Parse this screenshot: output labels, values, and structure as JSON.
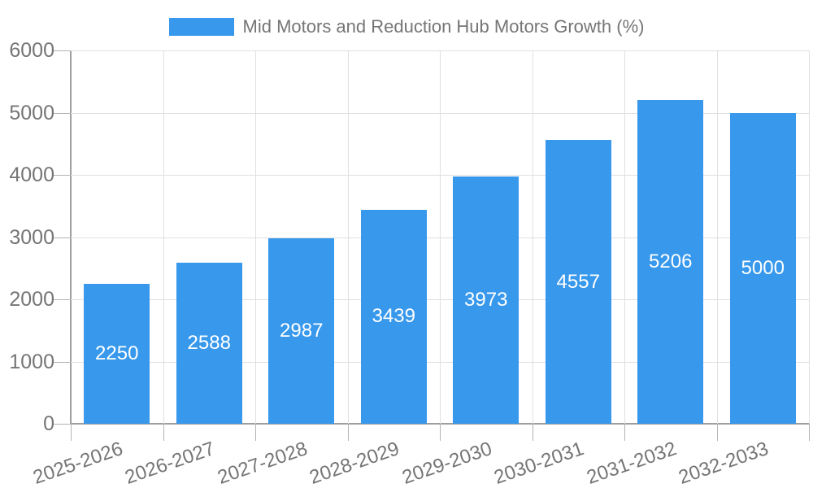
{
  "chart_data": {
    "type": "bar",
    "title": "Mid Motors and Reduction Hub Motors Growth (%)",
    "categories": [
      "2025-2026",
      "2026-2027",
      "2027-2028",
      "2028-2029",
      "2029-2030",
      "2030-2031",
      "2031-2032",
      "2032-2033"
    ],
    "values": [
      2250,
      2588,
      2987,
      3439,
      3973,
      4557,
      5206,
      5000
    ],
    "xlabel": "",
    "ylabel": "",
    "ylim": [
      0,
      6000
    ],
    "yticks": [
      0,
      1000,
      2000,
      3000,
      4000,
      5000,
      6000
    ],
    "grid": true,
    "legend_position": "top-center",
    "bar_color": "#3798ec",
    "bar_label_color": "#ffffff",
    "axis_text_color": "#757575",
    "grid_color": "#e0e0e0",
    "axis_line_color": "#9e9e9e"
  },
  "legend": {
    "label": "Mid Motors and Reduction Hub Motors Growth (%)",
    "swatch_color": "#3798ec"
  }
}
